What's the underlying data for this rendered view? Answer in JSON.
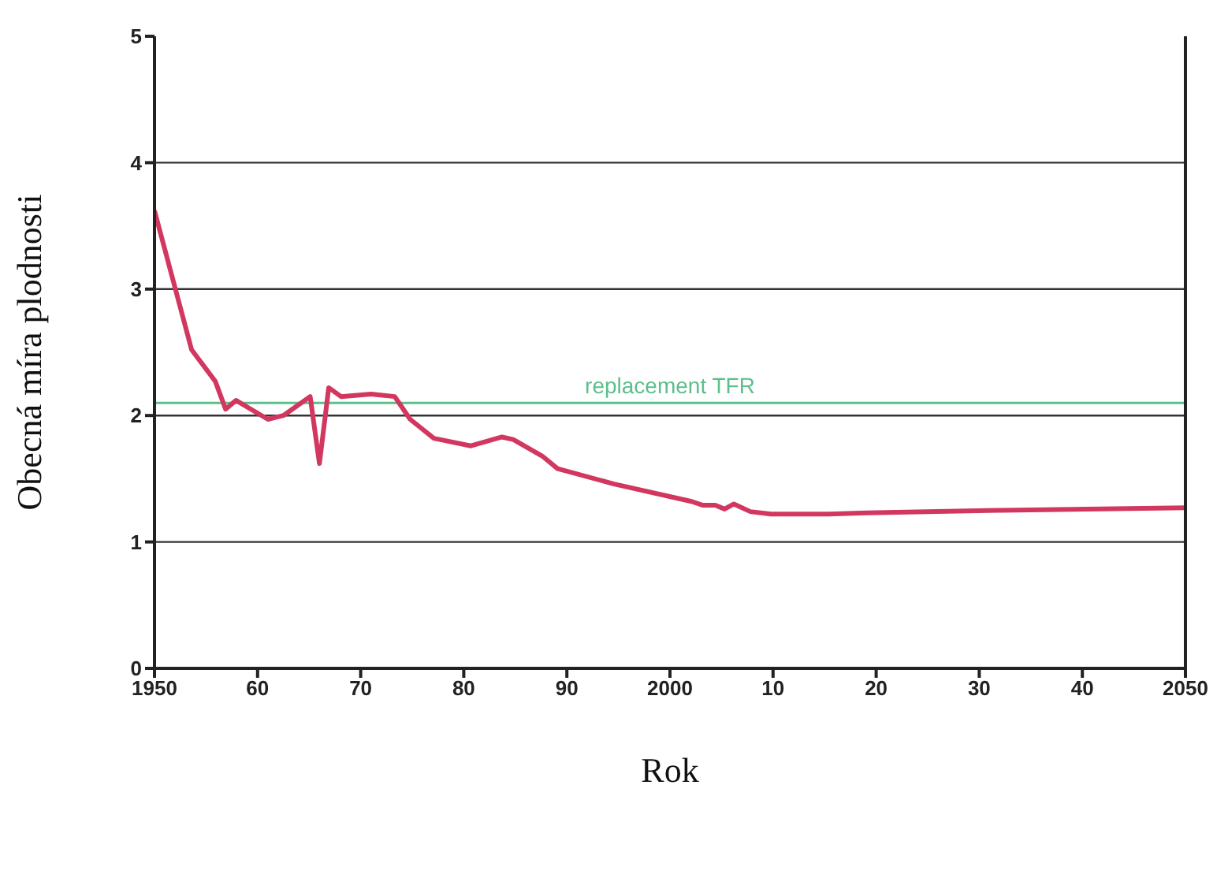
{
  "chart_data": {
    "type": "line",
    "xlabel": "Rok",
    "ylabel": "Obecná míra plodnosti",
    "x": [
      1950,
      1953.6,
      1955.9,
      1956.9,
      1957.9,
      1961,
      1962.5,
      1965.1,
      1966,
      1966.9,
      1968.1,
      1971,
      1973.3,
      1974.8,
      1977.1,
      1980.7,
      1983.7,
      1984.8,
      1987.6,
      1989.1,
      1994.5,
      2002.1,
      2003.2,
      2004.4,
      2005.3,
      2006.2,
      2007.8,
      2009.8,
      2015.4,
      2019,
      2031.8,
      2050
    ],
    "series": [
      {
        "color": "#d2375f",
        "values": [
          3.62,
          2.52,
          2.27,
          2.05,
          2.12,
          1.97,
          2.0,
          2.15,
          1.62,
          2.22,
          2.15,
          2.17,
          2.15,
          1.97,
          1.82,
          1.76,
          1.83,
          1.81,
          1.68,
          1.58,
          1.46,
          1.32,
          1.29,
          1.29,
          1.26,
          1.3,
          1.24,
          1.22,
          1.22,
          1.23,
          1.25,
          1.27
        ]
      }
    ],
    "xlim": [
      1950,
      2050
    ],
    "xticks": [
      1950,
      {
        "value": 1960,
        "label": "60"
      },
      {
        "value": 1970,
        "label": "70"
      },
      {
        "value": 1980,
        "label": "80"
      },
      {
        "value": 1990,
        "label": "90"
      },
      2000,
      {
        "value": 2010,
        "label": "10"
      },
      {
        "value": 2020,
        "label": "20"
      },
      {
        "value": 2030,
        "label": "30"
      },
      {
        "value": 2040,
        "label": "40"
      },
      2050
    ],
    "ylim": [
      0,
      5
    ],
    "yticks": [
      0,
      1,
      2,
      3,
      4,
      5
    ],
    "grid": "y",
    "marker": "none",
    "line_style": "solid",
    "legend": false,
    "ref_lines": [
      {
        "axis": "y",
        "value": 2.1,
        "label": "replacement TFR",
        "color": "#5cbf8c"
      }
    ]
  }
}
